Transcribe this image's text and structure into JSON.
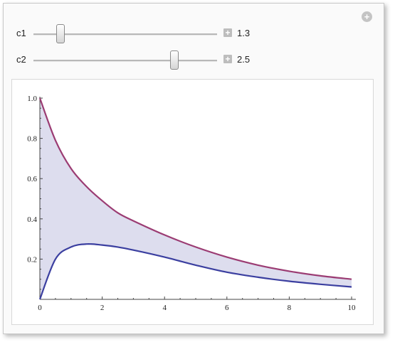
{
  "controls": {
    "corner_icon": "plus-circle-icon",
    "sliders": [
      {
        "name": "c1",
        "value": 1.3,
        "value_label": "1.3",
        "min": 0,
        "max": 10
      },
      {
        "name": "c2",
        "value": 2.5,
        "value_label": "2.5",
        "min": 0,
        "max": 3.2
      }
    ]
  },
  "chart_data": {
    "type": "area",
    "title": "",
    "xlabel": "",
    "ylabel": "",
    "xlim": [
      0,
      10
    ],
    "ylim": [
      0,
      1.0
    ],
    "x_ticks": [
      "0",
      "2",
      "4",
      "6",
      "8",
      "10"
    ],
    "y_ticks": [
      "0.2",
      "0.4",
      "0.6",
      "0.8",
      "1.0"
    ],
    "x": [
      0,
      0.5,
      1,
      1.5,
      2,
      2.5,
      3,
      4,
      5,
      6,
      7,
      8,
      9,
      10
    ],
    "series": [
      {
        "color": "#9b3c73",
        "values": [
          1.0,
          0.79,
          0.65,
          0.56,
          0.49,
          0.43,
          0.39,
          0.32,
          0.26,
          0.21,
          0.17,
          0.14,
          0.117,
          0.1
        ]
      },
      {
        "color": "#3b3fa0",
        "values": [
          0.0,
          0.2,
          0.26,
          0.275,
          0.27,
          0.26,
          0.245,
          0.21,
          0.17,
          0.135,
          0.11,
          0.09,
          0.075,
          0.062
        ]
      }
    ],
    "fill_color": "#d9d9ec",
    "grid": false
  }
}
